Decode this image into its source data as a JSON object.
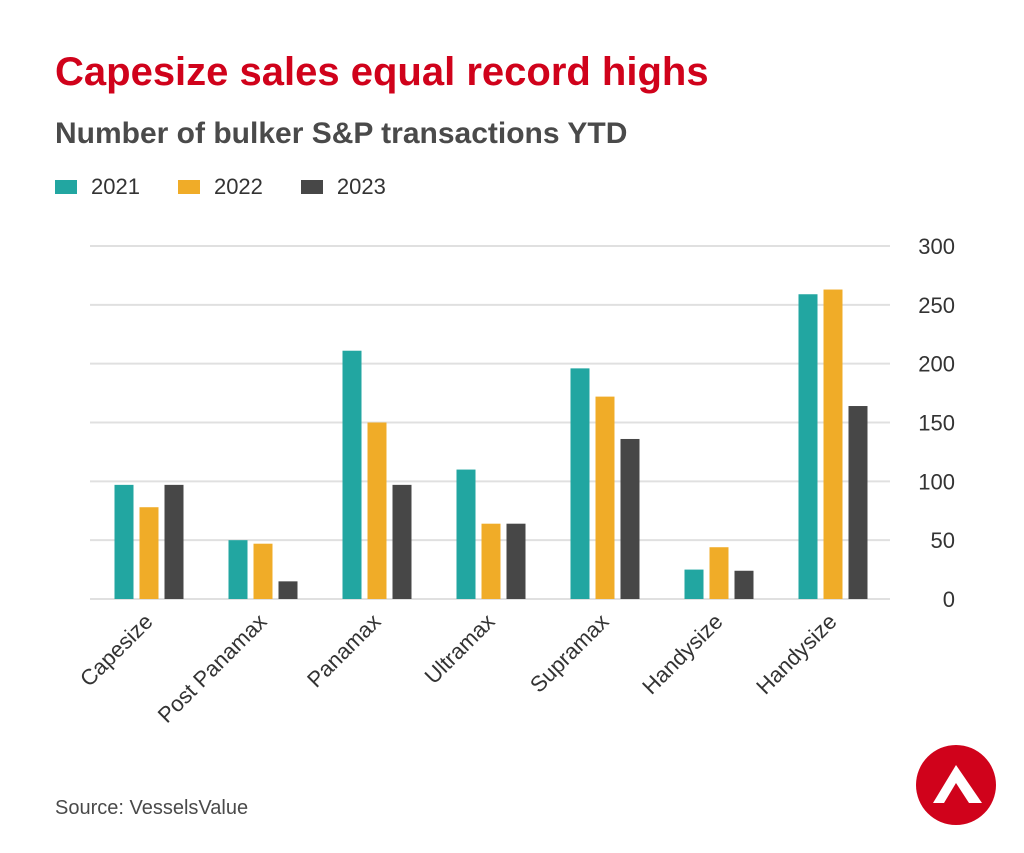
{
  "colors": {
    "title": "#d0021b",
    "grid": "#e0e0e0",
    "logo": "#d0021b"
  },
  "source": "Source: VesselsValue",
  "logo": {
    "icon": "triangle-logo-icon"
  },
  "chart_data": {
    "type": "bar",
    "title": "Capesize sales equal record highs",
    "subtitle": "Number of bulker S&P transactions YTD",
    "xlabel": "",
    "ylabel": "",
    "ylim": [
      0,
      300
    ],
    "yticks": [
      0,
      50,
      100,
      150,
      200,
      250,
      300
    ],
    "y_axis_side": "right",
    "legend_position": "top-left",
    "grid": true,
    "categories": [
      "Capesize",
      "Post Panamax",
      "Panamax",
      "Ultramax",
      "Supramax",
      "Handysize",
      "Handysize"
    ],
    "series": [
      {
        "name": "2021",
        "color": "#22a6a1",
        "values": [
          97,
          50,
          211,
          110,
          196,
          25,
          259
        ]
      },
      {
        "name": "2022",
        "color": "#f0ac28",
        "values": [
          78,
          47,
          150,
          64,
          172,
          44,
          263
        ]
      },
      {
        "name": "2023",
        "color": "#474747",
        "values": [
          97,
          15,
          97,
          64,
          136,
          24,
          164
        ]
      }
    ]
  }
}
